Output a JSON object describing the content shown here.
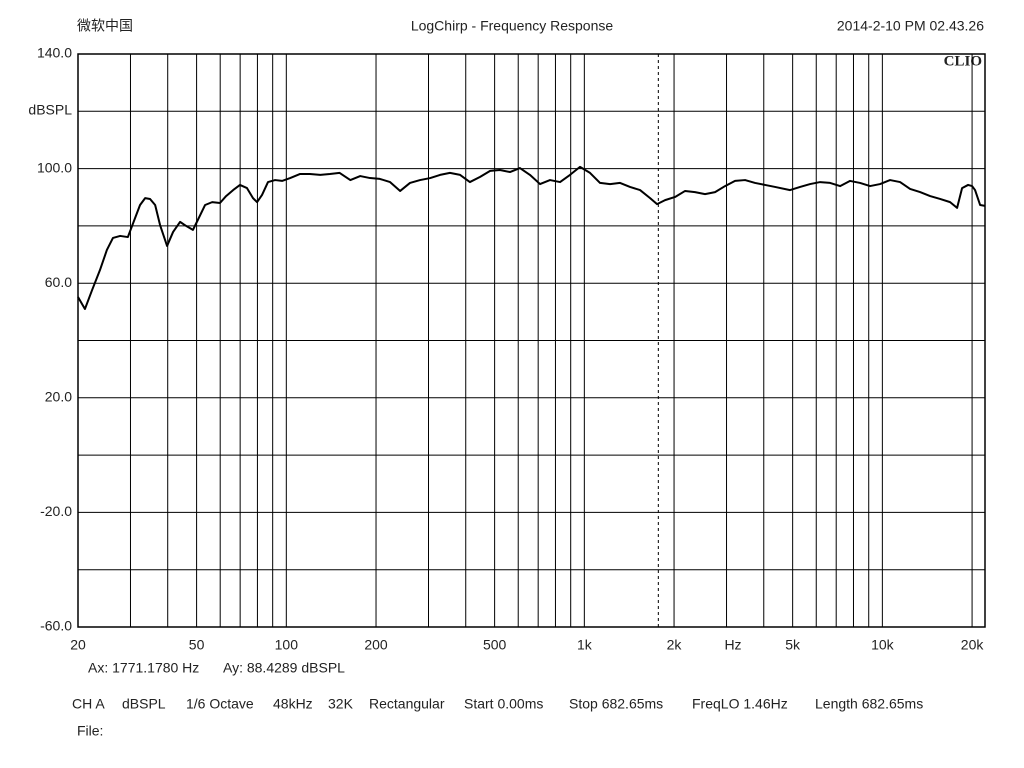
{
  "chart_data": {
    "type": "line",
    "top_left": "微软中国",
    "title": "LogChirp - Frequency Response",
    "timestamp": "2014-2-10 PM 02.43.26",
    "logo": "CLIO",
    "y_label": "dBSPL",
    "x_label": "Hz",
    "log_x": true,
    "xlim": [
      20,
      22100
    ],
    "ylim": [
      -60,
      140
    ],
    "xticks": [
      20,
      50,
      100,
      200,
      500,
      {
        "value": 1000,
        "label": "1k"
      },
      {
        "value": 2000,
        "label": "2k"
      },
      {
        "value": 5000,
        "label": "5k"
      },
      {
        "value": 10000,
        "label": "10k"
      },
      {
        "value": 20000,
        "label": "20k"
      }
    ],
    "xgrid": [
      30,
      40,
      60,
      70,
      80,
      90,
      300,
      400,
      600,
      700,
      800,
      900,
      3000,
      4000,
      6000,
      7000,
      8000,
      9000
    ],
    "yticks": [
      {
        "value": 140,
        "label": "140.0"
      },
      {
        "value": 100,
        "label": "100.0"
      },
      {
        "value": 60,
        "label": "60.0"
      },
      {
        "value": 20,
        "label": "20.0"
      },
      {
        "value": -20,
        "label": "-20.0"
      },
      {
        "value": -60,
        "label": "-60.0"
      }
    ],
    "ygrid": [
      120,
      80,
      40,
      0,
      -40
    ],
    "grid": true,
    "cursor_x": 1771.178,
    "cursor_readout": [
      "Ax: 1771.1780 Hz",
      "Ay: 88.4289 dBSPL"
    ],
    "settings": [
      "CH A",
      "dBSPL",
      "1/6 Octave",
      "48kHz",
      "32K",
      "Rectangular",
      "Start 0.00ms",
      "Stop 682.65ms",
      "FreqLO 1.46Hz",
      "Length 682.65ms"
    ],
    "file_label": "File:",
    "x": [
      20,
      21.1,
      22.3,
      23.7,
      25.0,
      26.2,
      27.7,
      29.4,
      31.1,
      32.3,
      33.6,
      34.9,
      36.3,
      37.7,
      39.8,
      41.7,
      44.0,
      46.1,
      48.6,
      50.5,
      53.4,
      56.4,
      59.9,
      62.8,
      66.3,
      69.9,
      73.8,
      77.3,
      79.8,
      82.9,
      86.8,
      91.7,
      96.8,
      103,
      111,
      120,
      130,
      140,
      151,
      164,
      177,
      191,
      206,
      223,
      241,
      260,
      281,
      304,
      328,
      354,
      383,
      413,
      447,
      483,
      521,
      563,
      608,
      657,
      710,
      767,
      829,
      895,
      967,
      1045,
      1129,
      1220,
      1318,
      1423,
      1538,
      1662,
      1754,
      1866,
      2016,
      2178,
      2352,
      2541,
      2746,
      2966,
      3204,
      3462,
      3740,
      4040,
      4365,
      4902,
      5296,
      5722,
      6181,
      6678,
      7213,
      7793,
      8419,
      9095,
      9826,
      10614,
      11468,
      12390,
      13384,
      14460,
      15621,
      16876,
      17814,
      18514,
      19393,
      20000,
      20466,
      21280,
      22100
    ],
    "series": [
      {
        "color": "#000000",
        "values": [
          55.2,
          51.0,
          57.6,
          64.6,
          71.6,
          75.8,
          76.5,
          76.1,
          82.8,
          87.3,
          89.7,
          89.4,
          87.3,
          80.3,
          73.0,
          77.9,
          81.4,
          80.0,
          78.6,
          82.1,
          87.3,
          88.3,
          88.0,
          90.4,
          92.5,
          94.3,
          93.2,
          89.7,
          88.3,
          90.8,
          95.3,
          96.0,
          95.7,
          96.7,
          98.1,
          98.1,
          97.8,
          98.1,
          98.5,
          96.0,
          97.4,
          96.7,
          96.4,
          95.3,
          92.2,
          95.0,
          96.0,
          96.7,
          97.8,
          98.5,
          97.8,
          95.3,
          97.1,
          99.2,
          99.5,
          98.8,
          100.2,
          97.8,
          94.6,
          96.0,
          95.3,
          97.8,
          100.6,
          98.5,
          95.0,
          94.6,
          95.0,
          93.6,
          92.5,
          89.7,
          87.6,
          89.0,
          90.1,
          92.2,
          91.8,
          91.1,
          91.8,
          93.9,
          95.7,
          96.0,
          95.0,
          94.3,
          93.6,
          92.5,
          93.6,
          94.6,
          95.3,
          95.0,
          93.9,
          95.7,
          95.0,
          93.9,
          94.6,
          96.0,
          95.3,
          92.9,
          91.8,
          90.4,
          89.4,
          88.3,
          86.3,
          93.2,
          94.3,
          93.9,
          92.5,
          87.3,
          87.0
        ]
      }
    ]
  }
}
